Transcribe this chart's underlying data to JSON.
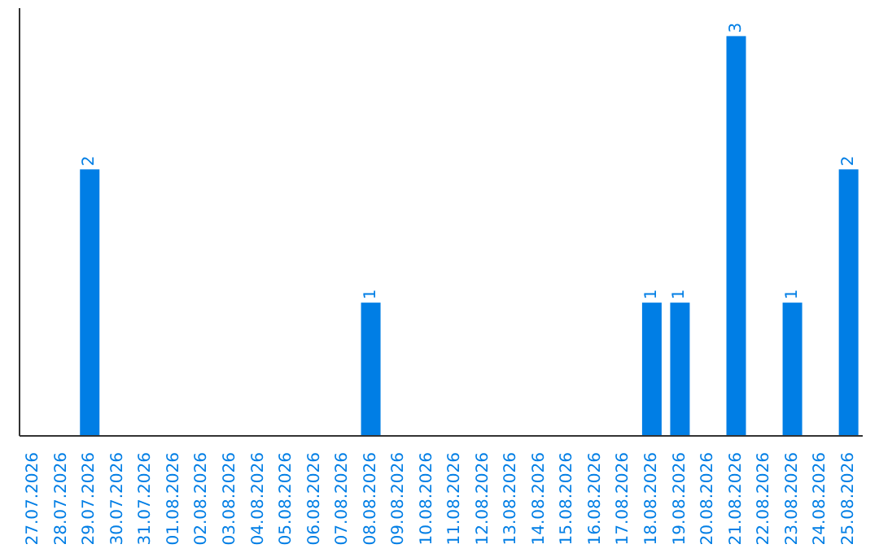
{
  "chart_data": {
    "type": "bar",
    "categories": [
      "27.07.2026",
      "28.07.2026",
      "29.07.2026",
      "30.07.2026",
      "31.07.2026",
      "01.08.2026",
      "02.08.2026",
      "03.08.2026",
      "04.08.2026",
      "05.08.2026",
      "06.08.2026",
      "07.08.2026",
      "08.08.2026",
      "09.08.2026",
      "10.08.2026",
      "11.08.2026",
      "12.08.2026",
      "13.08.2026",
      "14.08.2026",
      "15.08.2026",
      "16.08.2026",
      "17.08.2026",
      "18.08.2026",
      "19.08.2026",
      "20.08.2026",
      "21.08.2026",
      "22.08.2026",
      "23.08.2026",
      "24.08.2026",
      "25.08.2026"
    ],
    "values": [
      0,
      0,
      2,
      0,
      0,
      0,
      0,
      0,
      0,
      0,
      0,
      0,
      1,
      0,
      0,
      0,
      0,
      0,
      0,
      0,
      0,
      0,
      1,
      1,
      0,
      3,
      0,
      1,
      0,
      2
    ],
    "value_labels": [
      null,
      null,
      "2",
      null,
      null,
      null,
      null,
      null,
      null,
      null,
      null,
      null,
      "1",
      null,
      null,
      null,
      null,
      null,
      null,
      null,
      null,
      null,
      "1",
      "1",
      null,
      "3",
      null,
      "1",
      null,
      "2"
    ],
    "color": "#007ee5"
  }
}
